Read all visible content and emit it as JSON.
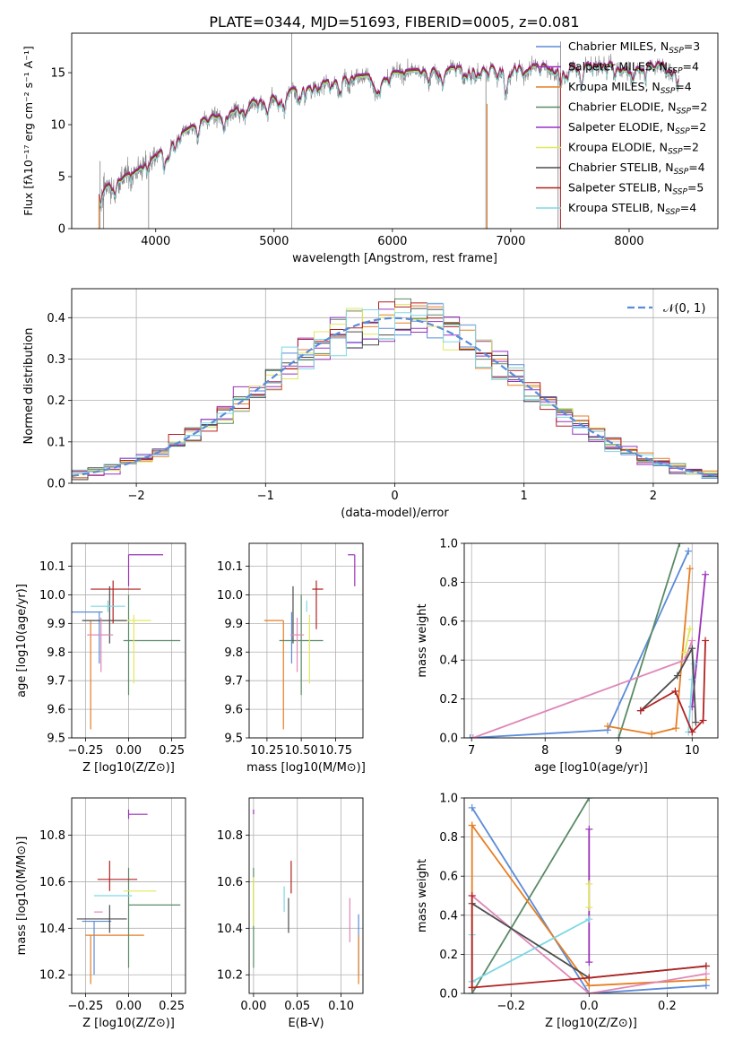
{
  "figure": {
    "title": "PLATE=0344, MJD=51693, FIBERID=0005, z=0.081"
  },
  "model_colors": {
    "Chabrier MILES": "#5b8bd9",
    "Salpeter MILES": "#9a32b8",
    "Kroupa MILES": "#e67e22",
    "Chabrier ELODIE": "#5a8a66",
    "Salpeter ELODIE": "#9932cc",
    "Kroupa ELODIE": "#e0e85a",
    "Chabrier STELIB": "#4d4d4d",
    "Salpeter STELIB": "#b22222",
    "Kroupa STELIB": "#7fd8e6",
    "data": "#808080",
    "pink": "#e088b8"
  },
  "chart_data": [
    {
      "id": "spectrum",
      "type": "line",
      "title": "PLATE=0344, MJD=51693, FIBERID=0005, z=0.081",
      "xlabel": "wavelength [Angstrom, rest frame]",
      "ylabel": "Flux [fλ10⁻¹⁷ erg cm⁻² s⁻¹ A⁻¹]",
      "xlim": [
        3290,
        8750
      ],
      "ylim": [
        0,
        18.8
      ],
      "xticks": [
        4000,
        5000,
        6000,
        7000,
        8000
      ],
      "yticks": [
        0,
        5,
        10,
        15
      ],
      "continuum": {
        "x": [
          3500,
          3700,
          3900,
          4000,
          4200,
          4400,
          4700,
          5000,
          5300,
          5600,
          6000,
          6400,
          6800,
          7200,
          7600,
          8000,
          8400
        ],
        "y": [
          3.5,
          4.8,
          6.0,
          7.0,
          9.0,
          10.5,
          11.8,
          13.0,
          13.8,
          14.5,
          15.0,
          15.4,
          15.6,
          15.7,
          15.8,
          15.9,
          16.0
        ]
      },
      "legend": [
        "Chabrier MILES, N_SSP=3",
        "Salpeter MILES, N_SSP=4",
        "Kroupa MILES, N_SSP=4",
        "Chabrier ELODIE, N_SSP=2",
        "Salpeter ELODIE, N_SSP=2",
        "Kroupa ELODIE, N_SSP=2",
        "Chabrier STELIB, N_SSP=4",
        "Salpeter STELIB, N_SSP=5",
        "Kroupa STELIB, N_SSP=4"
      ],
      "legend_position": "right",
      "legend_text": [
        [
          "Chabrier MILES, N",
          "SSP",
          "=3"
        ],
        [
          "Salpeter MILES, N",
          "SSP",
          "=4"
        ],
        [
          "Kroupa MILES, N",
          "SSP",
          "=4"
        ],
        [
          "Chabrier ELODIE, N",
          "SSP",
          "=2"
        ],
        [
          "Salpeter ELODIE, N",
          "SSP",
          "=2"
        ],
        [
          "Kroupa ELODIE, N",
          "SSP",
          "=2"
        ],
        [
          "Chabrier STELIB, N",
          "SSP",
          "=4"
        ],
        [
          "Salpeter STELIB, N",
          "SSP",
          "=5"
        ],
        [
          "Kroupa STELIB, N",
          "SSP",
          "=4"
        ]
      ],
      "legend_models": [
        "Chabrier MILES",
        "Salpeter MILES",
        "Kroupa MILES",
        "Chabrier ELODIE",
        "Salpeter ELODIE",
        "Kroupa ELODIE",
        "Chabrier STELIB",
        "Salpeter STELIB",
        "Kroupa STELIB"
      ]
    },
    {
      "id": "residuals",
      "type": "line",
      "xlabel": "(data-model)/error",
      "ylabel": "Normed distribution",
      "xlim": [
        -2.5,
        2.5
      ],
      "ylim": [
        0,
        0.47
      ],
      "xticks": [
        -2,
        -1,
        0,
        1,
        2
      ],
      "yticks": [
        0.0,
        0.1,
        0.2,
        0.3,
        0.4
      ],
      "grid": true,
      "reference": "N(0,1)",
      "legend": [
        "𝒩(0, 1)"
      ],
      "legend_position": "top-right"
    },
    {
      "id": "age-vs-Z",
      "type": "scatter",
      "xlabel": "Z [log10(Z/Z⊙)]",
      "ylabel": "age [log10(age/yr)]",
      "xlim": [
        -0.33,
        0.33
      ],
      "ylim": [
        9.5,
        10.18
      ],
      "xticks": [
        -0.25,
        0.0,
        0.25
      ],
      "yticks": [
        9.5,
        9.6,
        9.7,
        9.8,
        9.9,
        10.0,
        10.1
      ],
      "grid": true,
      "points": [
        {
          "model": "Chabrier MILES",
          "x": -0.17,
          "x_err": [
            0.23,
            0.02
          ],
          "y": 9.94,
          "y_err": [
            0.18,
            0.0
          ]
        },
        {
          "model": "Salpeter MILES",
          "x": 0.0,
          "x_err": [
            0.0,
            0.2
          ],
          "y": 10.14,
          "y_err": [
            0.11,
            0.0
          ]
        },
        {
          "model": "Kroupa MILES",
          "x": -0.22,
          "x_err": [
            0.0,
            0.0
          ],
          "y": 9.91,
          "y_err": [
            0.38,
            0.0
          ]
        },
        {
          "model": "Chabrier ELODIE",
          "x": 0.0,
          "x_err": [
            0.03,
            0.3
          ],
          "y": 9.84,
          "y_err": [
            0.19,
            0.16
          ]
        },
        {
          "model": "Kroupa ELODIE",
          "x": 0.03,
          "x_err": [
            0.13,
            0.1
          ],
          "y": 9.91,
          "y_err": [
            0.22,
            0.02
          ]
        },
        {
          "model": "Chabrier STELIB",
          "x": -0.11,
          "x_err": [
            0.16,
            0.1
          ],
          "y": 9.91,
          "y_err": [
            0.08,
            0.12
          ]
        },
        {
          "model": "Salpeter STELIB",
          "x": -0.09,
          "x_err": [
            0.13,
            0.16
          ],
          "y": 10.02,
          "y_err": [
            0.12,
            0.03
          ]
        },
        {
          "model": "Kroupa STELIB",
          "x": -0.12,
          "x_err": [
            0.1,
            0.1
          ],
          "y": 9.96,
          "y_err": [
            0.02,
            0.02
          ]
        },
        {
          "model": "pink",
          "x": -0.16,
          "x_err": [
            0.08,
            0.07
          ],
          "y": 9.86,
          "y_err": [
            0.13,
            0.06
          ]
        }
      ]
    },
    {
      "id": "age-vs-mass",
      "type": "scatter",
      "xlabel": "mass [log10(M/M⊙)]",
      "ylabel": "",
      "xlim": [
        10.12,
        10.95
      ],
      "ylim": [
        9.5,
        10.18
      ],
      "xticks": [
        10.25,
        10.5,
        10.75
      ],
      "yticks": [
        9.5,
        9.6,
        9.7,
        9.8,
        9.9,
        10.0,
        10.1
      ],
      "grid": true,
      "points": [
        {
          "model": "Chabrier MILES",
          "x": 10.43,
          "x_err": [
            0.0,
            0.0
          ],
          "y": 9.94,
          "y_err": [
            0.18,
            0.0
          ]
        },
        {
          "model": "Salpeter MILES",
          "x": 10.89,
          "x_err": [
            0.05,
            0.0
          ],
          "y": 10.14,
          "y_err": [
            0.11,
            0.0
          ]
        },
        {
          "model": "Kroupa MILES",
          "x": 10.37,
          "x_err": [
            0.14,
            0.0
          ],
          "y": 9.91,
          "y_err": [
            0.38,
            0.0
          ]
        },
        {
          "model": "Chabrier ELODIE",
          "x": 10.5,
          "x_err": [
            0.16,
            0.16
          ],
          "y": 9.84,
          "y_err": [
            0.19,
            0.16
          ]
        },
        {
          "model": "Kroupa ELODIE",
          "x": 10.56,
          "x_err": [
            0.0,
            0.0
          ],
          "y": 9.91,
          "y_err": [
            0.22,
            0.02
          ]
        },
        {
          "model": "Chabrier STELIB",
          "x": 10.44,
          "x_err": [
            0.0,
            0.0
          ],
          "y": 9.91,
          "y_err": [
            0.08,
            0.12
          ]
        },
        {
          "model": "Salpeter STELIB",
          "x": 10.61,
          "x_err": [
            0.03,
            0.05
          ],
          "y": 10.02,
          "y_err": [
            0.14,
            0.03
          ]
        },
        {
          "model": "Kroupa STELIB",
          "x": 10.54,
          "x_err": [
            0.0,
            0.0
          ],
          "y": 9.96,
          "y_err": [
            0.02,
            0.02
          ]
        },
        {
          "model": "pink",
          "x": 10.47,
          "x_err": [
            0.05,
            0.05
          ],
          "y": 9.86,
          "y_err": [
            0.13,
            0.06
          ]
        }
      ]
    },
    {
      "id": "mass-weight-vs-age",
      "type": "line",
      "xlabel": "age [log10(age/yr)]",
      "ylabel": "mass weight",
      "xlim": [
        6.9,
        10.35
      ],
      "ylim": [
        0,
        1.0
      ],
      "xticks": [
        7,
        8,
        9,
        10
      ],
      "yticks": [
        0.0,
        0.2,
        0.4,
        0.6,
        0.8,
        1.0
      ],
      "grid": true,
      "series": [
        {
          "model": "Chabrier MILES",
          "x": [
            6.98,
            8.85,
            9.95
          ],
          "y": [
            0.0,
            0.04,
            0.96
          ]
        },
        {
          "model": "Chabrier ELODIE",
          "x": [
            9.0,
            9.83
          ],
          "y": [
            0.0,
            1.0
          ]
        },
        {
          "model": "Kroupa MILES",
          "x": [
            8.85,
            9.45,
            9.78,
            9.97
          ],
          "y": [
            0.06,
            0.02,
            0.05,
            0.87
          ]
        },
        {
          "model": "Salpeter MILES",
          "x": [
            10.0,
            10.18
          ],
          "y": [
            0.16,
            0.84
          ]
        },
        {
          "model": "pink",
          "x": [
            7.02,
            9.9,
            10.0
          ],
          "y": [
            0.0,
            0.4,
            0.5
          ]
        },
        {
          "model": "Kroupa ELODIE",
          "x": [
            9.9,
            9.97
          ],
          "y": [
            0.44,
            0.56
          ]
        },
        {
          "model": "Kroupa STELIB",
          "x": [
            9.95,
            10.0,
            10.03
          ],
          "y": [
            0.03,
            0.3,
            0.38
          ]
        },
        {
          "model": "Chabrier STELIB",
          "x": [
            9.3,
            9.8,
            10.0,
            10.05
          ],
          "y": [
            0.14,
            0.32,
            0.46,
            0.08
          ]
        },
        {
          "model": "Salpeter STELIB",
          "x": [
            9.3,
            9.77,
            10.0,
            10.15,
            10.18
          ],
          "y": [
            0.14,
            0.24,
            0.03,
            0.09,
            0.5
          ]
        }
      ]
    },
    {
      "id": "mass-vs-Z",
      "type": "scatter",
      "xlabel": "Z [log10(Z/Z⊙)]",
      "ylabel": "mass [log10(M/M⊙)]",
      "xlim": [
        -0.33,
        0.33
      ],
      "ylim": [
        10.12,
        10.96
      ],
      "xticks": [
        -0.25,
        0.0,
        0.25
      ],
      "yticks": [
        10.2,
        10.4,
        10.6,
        10.8
      ],
      "grid": true,
      "points": [
        {
          "model": "Chabrier MILES",
          "x": -0.2,
          "x_err": [
            0.07,
            0.1
          ],
          "y": 10.43,
          "y_err": [
            0.23,
            0.0
          ]
        },
        {
          "model": "Salpeter MILES",
          "x": 0.0,
          "x_err": [
            0.0,
            0.11
          ],
          "y": 10.89,
          "y_err": [
            0.02,
            0.02
          ]
        },
        {
          "model": "Kroupa MILES",
          "x": -0.22,
          "x_err": [
            0.03,
            0.31
          ],
          "y": 10.37,
          "y_err": [
            0.21,
            0.0
          ]
        },
        {
          "model": "Chabrier ELODIE",
          "x": 0.0,
          "x_err": [
            0.0,
            0.3
          ],
          "y": 10.5,
          "y_err": [
            0.27,
            0.16
          ]
        },
        {
          "model": "Kroupa ELODIE",
          "x": -0.03,
          "x_err": [
            0.0,
            0.19
          ],
          "y": 10.56,
          "y_err": [
            0.0,
            0.0
          ]
        },
        {
          "model": "Chabrier STELIB",
          "x": -0.11,
          "x_err": [
            0.19,
            0.1
          ],
          "y": 10.44,
          "y_err": [
            0.06,
            0.06
          ]
        },
        {
          "model": "Salpeter STELIB",
          "x": -0.11,
          "x_err": [
            0.07,
            0.16
          ],
          "y": 10.61,
          "y_err": [
            0.05,
            0.08
          ]
        },
        {
          "model": "Kroupa STELIB",
          "x": -0.05,
          "x_err": [
            0.15,
            0.07
          ],
          "y": 10.54,
          "y_err": [
            0.0,
            0.0
          ]
        },
        {
          "model": "pink",
          "x": -0.15,
          "x_err": [
            0.05,
            0.0
          ],
          "y": 10.47,
          "y_err": [
            0.0,
            0.0
          ]
        }
      ]
    },
    {
      "id": "mass-vs-EBV",
      "type": "scatter",
      "xlabel": "E(B-V)",
      "ylabel": "",
      "xlim": [
        -0.005,
        0.125
      ],
      "ylim": [
        10.12,
        10.96
      ],
      "xticks": [
        0.0,
        0.05,
        0.1
      ],
      "yticks": [
        10.2,
        10.4,
        10.6,
        10.8
      ],
      "grid": true,
      "points": [
        {
          "model": "Chabrier MILES",
          "x": 0.12,
          "x_err": [
            0.0,
            0.0
          ],
          "y": 10.43,
          "y_err": [
            0.23,
            0.03
          ]
        },
        {
          "model": "Salpeter MILES",
          "x": 0.0,
          "x_err": [
            0.0,
            0.0
          ],
          "y": 10.89,
          "y_err": [
            0.0,
            0.02
          ]
        },
        {
          "model": "Kroupa MILES",
          "x": 0.12,
          "x_err": [
            0.0,
            0.0
          ],
          "y": 10.37,
          "y_err": [
            0.21,
            0.0
          ]
        },
        {
          "model": "Chabrier ELODIE",
          "x": 0.0,
          "x_err": [
            0.0,
            0.0
          ],
          "y": 10.5,
          "y_err": [
            0.27,
            0.16
          ]
        },
        {
          "model": "Kroupa ELODIE",
          "x": 0.0,
          "x_err": [
            0.0,
            0.0
          ],
          "y": 10.56,
          "y_err": [
            0.15,
            0.06
          ]
        },
        {
          "model": "Chabrier STELIB",
          "x": 0.04,
          "x_err": [
            0.0,
            0.0
          ],
          "y": 10.44,
          "y_err": [
            0.06,
            0.09
          ]
        },
        {
          "model": "Salpeter STELIB",
          "x": 0.043,
          "x_err": [
            0.0,
            0.0
          ],
          "y": 10.61,
          "y_err": [
            0.06,
            0.08
          ]
        },
        {
          "model": "Kroupa STELIB",
          "x": 0.035,
          "x_err": [
            0.0,
            0.0
          ],
          "y": 10.54,
          "y_err": [
            0.07,
            0.04
          ]
        },
        {
          "model": "pink",
          "x": 0.11,
          "x_err": [
            0.0,
            0.0
          ],
          "y": 10.44,
          "y_err": [
            0.1,
            0.09
          ]
        }
      ]
    },
    {
      "id": "mass-weight-vs-Z",
      "type": "line",
      "xlabel": "Z [log10(Z/Z⊙)]",
      "ylabel": "mass weight",
      "xlim": [
        -0.32,
        0.33
      ],
      "ylim": [
        0,
        1.0
      ],
      "xticks": [
        -0.2,
        0.0,
        0.2
      ],
      "yticks": [
        0.0,
        0.2,
        0.4,
        0.6,
        0.8,
        1.0
      ],
      "grid": true,
      "series": [
        {
          "model": "Chabrier MILES",
          "x": [
            -0.3,
            0.0,
            0.3
          ],
          "y": [
            0.95,
            0.0,
            0.04
          ]
        },
        {
          "model": "Chabrier ELODIE",
          "x": [
            -0.3,
            0.0
          ],
          "y": [
            0.0,
            1.0
          ]
        },
        {
          "model": "Kroupa MILES",
          "x": [
            -0.3,
            0.0,
            0.3
          ],
          "y": [
            0.86,
            0.04,
            0.07
          ]
        },
        {
          "model": "Kroupa MILES",
          "x": [
            -0.3,
            -0.3
          ],
          "y": [
            0.03,
            0.86
          ]
        },
        {
          "model": "Salpeter MILES",
          "x": [
            0.0,
            0.0
          ],
          "y": [
            0.16,
            0.84
          ]
        },
        {
          "model": "pink",
          "x": [
            -0.3,
            0.0,
            0.3
          ],
          "y": [
            0.5,
            0.0,
            0.1
          ]
        },
        {
          "model": "Kroupa ELODIE",
          "x": [
            0.0,
            0.0
          ],
          "y": [
            0.44,
            0.56
          ]
        },
        {
          "model": "Kroupa STELIB",
          "x": [
            -0.3,
            0.0
          ],
          "y": [
            0.06,
            0.38
          ]
        },
        {
          "model": "Kroupa STELIB",
          "x": [
            -0.3,
            -0.3
          ],
          "y": [
            0.06,
            0.3
          ]
        },
        {
          "model": "Chabrier STELIB",
          "x": [
            -0.3,
            0.0,
            0.3
          ],
          "y": [
            0.46,
            0.08,
            0.14
          ]
        },
        {
          "model": "Salpeter STELIB",
          "x": [
            -0.3,
            0.0,
            0.3
          ],
          "y": [
            0.03,
            0.08,
            0.14
          ]
        },
        {
          "model": "Salpeter STELIB",
          "x": [
            -0.3,
            -0.3
          ],
          "y": [
            0.03,
            0.5
          ]
        }
      ]
    }
  ]
}
